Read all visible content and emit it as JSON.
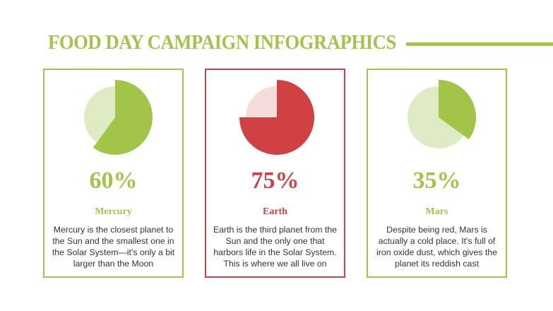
{
  "title": "FOOD DAY CAMPAIGN INFOGRAPHICS",
  "colors": {
    "green": "#a2c448",
    "light_green": "#dfebc5",
    "red": "#d14042",
    "light_red": "#f7dcdc"
  },
  "cards": [
    {
      "percent": "60%",
      "value": 0.6,
      "name": "Mercury",
      "description": "Mercury is the closest planet to the Sun and the smallest one in the Solar System—it’s only a bit larger than the Moon",
      "color": "#a2c448",
      "light": "#dfebc5"
    },
    {
      "percent": "75%",
      "value": 0.75,
      "name": "Earth",
      "description": "Earth is the third planet from the Sun and the only one that harbors life in the Solar System. This is where we all live on",
      "color": "#d14042",
      "light": "#f7dcdc"
    },
    {
      "percent": "35%",
      "value": 0.35,
      "name": "Mars",
      "description": "Despite being red, Mars is actually a cold place. It's full of iron oxide dust, which gives the planet its reddish cast",
      "color": "#a2c448",
      "light": "#dfebc5"
    }
  ]
}
